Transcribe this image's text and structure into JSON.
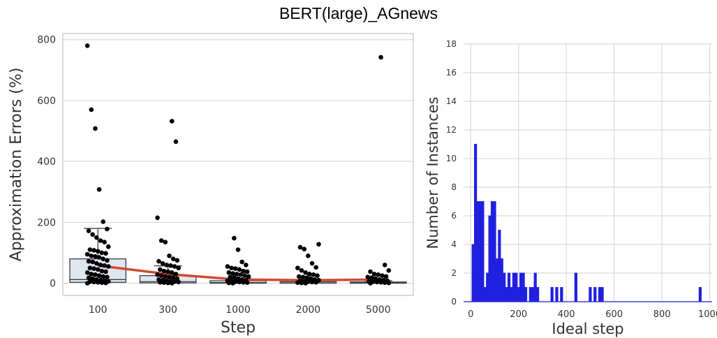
{
  "suptitle": "BERT(large)_AGnews",
  "chart_data": [
    {
      "type": "box",
      "xlabel": "Step",
      "ylabel": "Approximation Errors  (%)",
      "categories": [
        "100",
        "300",
        "1000",
        "2000",
        "5000"
      ],
      "ylim": [
        -40,
        820
      ],
      "yticks": [
        0,
        200,
        400,
        600,
        800
      ],
      "grid": true,
      "boxes": [
        {
          "category": "100",
          "q1": 3,
          "median": 12,
          "q3": 80,
          "whisker_low": 0,
          "whisker_high": 180
        },
        {
          "category": "300",
          "q1": 1,
          "median": 5,
          "q3": 25,
          "whisker_low": 0,
          "whisker_high": 57
        },
        {
          "category": "1000",
          "q1": 0,
          "median": 2,
          "q3": 8,
          "whisker_low": 0,
          "whisker_high": 15
        },
        {
          "category": "2000",
          "q1": 0,
          "median": 1,
          "q3": 5,
          "whisker_low": 0,
          "whisker_high": 10
        },
        {
          "category": "5000",
          "q1": 0,
          "median": 1,
          "q3": 4,
          "whisker_low": 0,
          "whisker_high": 8
        }
      ],
      "mean_line": {
        "color": "#d04a32",
        "values": [
          58,
          30,
          12,
          10,
          12
        ]
      },
      "points": [
        {
          "category": "100",
          "values": [
            780,
            570,
            508,
            308,
            202,
            178,
            172,
            160,
            150,
            140,
            135,
            120,
            110,
            108,
            105,
            100,
            98,
            95,
            90,
            88,
            85,
            80,
            75,
            72,
            70,
            65,
            60,
            58,
            55,
            50,
            48,
            45,
            40,
            38,
            35,
            30,
            28,
            25,
            22,
            20,
            18,
            15,
            12,
            10,
            8,
            6,
            5,
            4,
            3,
            2,
            1,
            0
          ]
        },
        {
          "category": "300",
          "values": [
            532,
            465,
            215,
            140,
            135,
            90,
            80,
            75,
            72,
            65,
            60,
            58,
            55,
            50,
            45,
            40,
            38,
            35,
            30,
            28,
            25,
            22,
            20,
            18,
            15,
            12,
            10,
            8,
            6,
            5,
            4,
            3,
            2,
            1,
            0
          ]
        },
        {
          "category": "1000",
          "values": [
            148,
            110,
            70,
            60,
            55,
            50,
            48,
            45,
            40,
            38,
            35,
            32,
            30,
            28,
            25,
            22,
            20,
            18,
            15,
            12,
            10,
            8,
            6,
            5,
            4,
            3,
            2,
            1,
            0
          ]
        },
        {
          "category": "2000",
          "values": [
            128,
            118,
            112,
            90,
            65,
            52,
            50,
            42,
            35,
            30,
            28,
            25,
            22,
            20,
            18,
            15,
            12,
            10,
            8,
            6,
            5,
            4,
            3,
            2,
            1,
            0
          ]
        },
        {
          "category": "5000",
          "values": [
            742,
            60,
            42,
            38,
            30,
            28,
            25,
            22,
            20,
            18,
            15,
            12,
            10,
            8,
            6,
            5,
            4,
            3,
            2,
            1,
            0
          ]
        }
      ]
    },
    {
      "type": "histogram",
      "xlabel": "Ideal step",
      "ylabel": "Number of Instances",
      "xlim": [
        -30,
        1010
      ],
      "ylim": [
        0,
        18
      ],
      "xticks": [
        0,
        200,
        400,
        600,
        800,
        1000
      ],
      "yticks": [
        0,
        2,
        4,
        6,
        8,
        10,
        12,
        14,
        16,
        18
      ],
      "grid": true,
      "color": "#2020e0",
      "bin_width": 10,
      "bins": [
        {
          "x": 10,
          "count": 4
        },
        {
          "x": 20,
          "count": 11
        },
        {
          "x": 30,
          "count": 7
        },
        {
          "x": 40,
          "count": 7
        },
        {
          "x": 50,
          "count": 7
        },
        {
          "x": 60,
          "count": 1
        },
        {
          "x": 70,
          "count": 2
        },
        {
          "x": 80,
          "count": 6
        },
        {
          "x": 90,
          "count": 7
        },
        {
          "x": 100,
          "count": 7
        },
        {
          "x": 110,
          "count": 3
        },
        {
          "x": 120,
          "count": 5
        },
        {
          "x": 130,
          "count": 3
        },
        {
          "x": 140,
          "count": 2
        },
        {
          "x": 150,
          "count": 1
        },
        {
          "x": 160,
          "count": 2
        },
        {
          "x": 170,
          "count": 1
        },
        {
          "x": 180,
          "count": 2
        },
        {
          "x": 190,
          "count": 2
        },
        {
          "x": 200,
          "count": 1
        },
        {
          "x": 210,
          "count": 2
        },
        {
          "x": 220,
          "count": 2
        },
        {
          "x": 230,
          "count": 1
        },
        {
          "x": 250,
          "count": 1
        },
        {
          "x": 260,
          "count": 1
        },
        {
          "x": 270,
          "count": 2
        },
        {
          "x": 280,
          "count": 1
        },
        {
          "x": 340,
          "count": 1
        },
        {
          "x": 360,
          "count": 1
        },
        {
          "x": 380,
          "count": 1
        },
        {
          "x": 440,
          "count": 2
        },
        {
          "x": 500,
          "count": 1
        },
        {
          "x": 520,
          "count": 1
        },
        {
          "x": 540,
          "count": 1
        },
        {
          "x": 550,
          "count": 1
        },
        {
          "x": 960,
          "count": 1
        }
      ]
    }
  ]
}
